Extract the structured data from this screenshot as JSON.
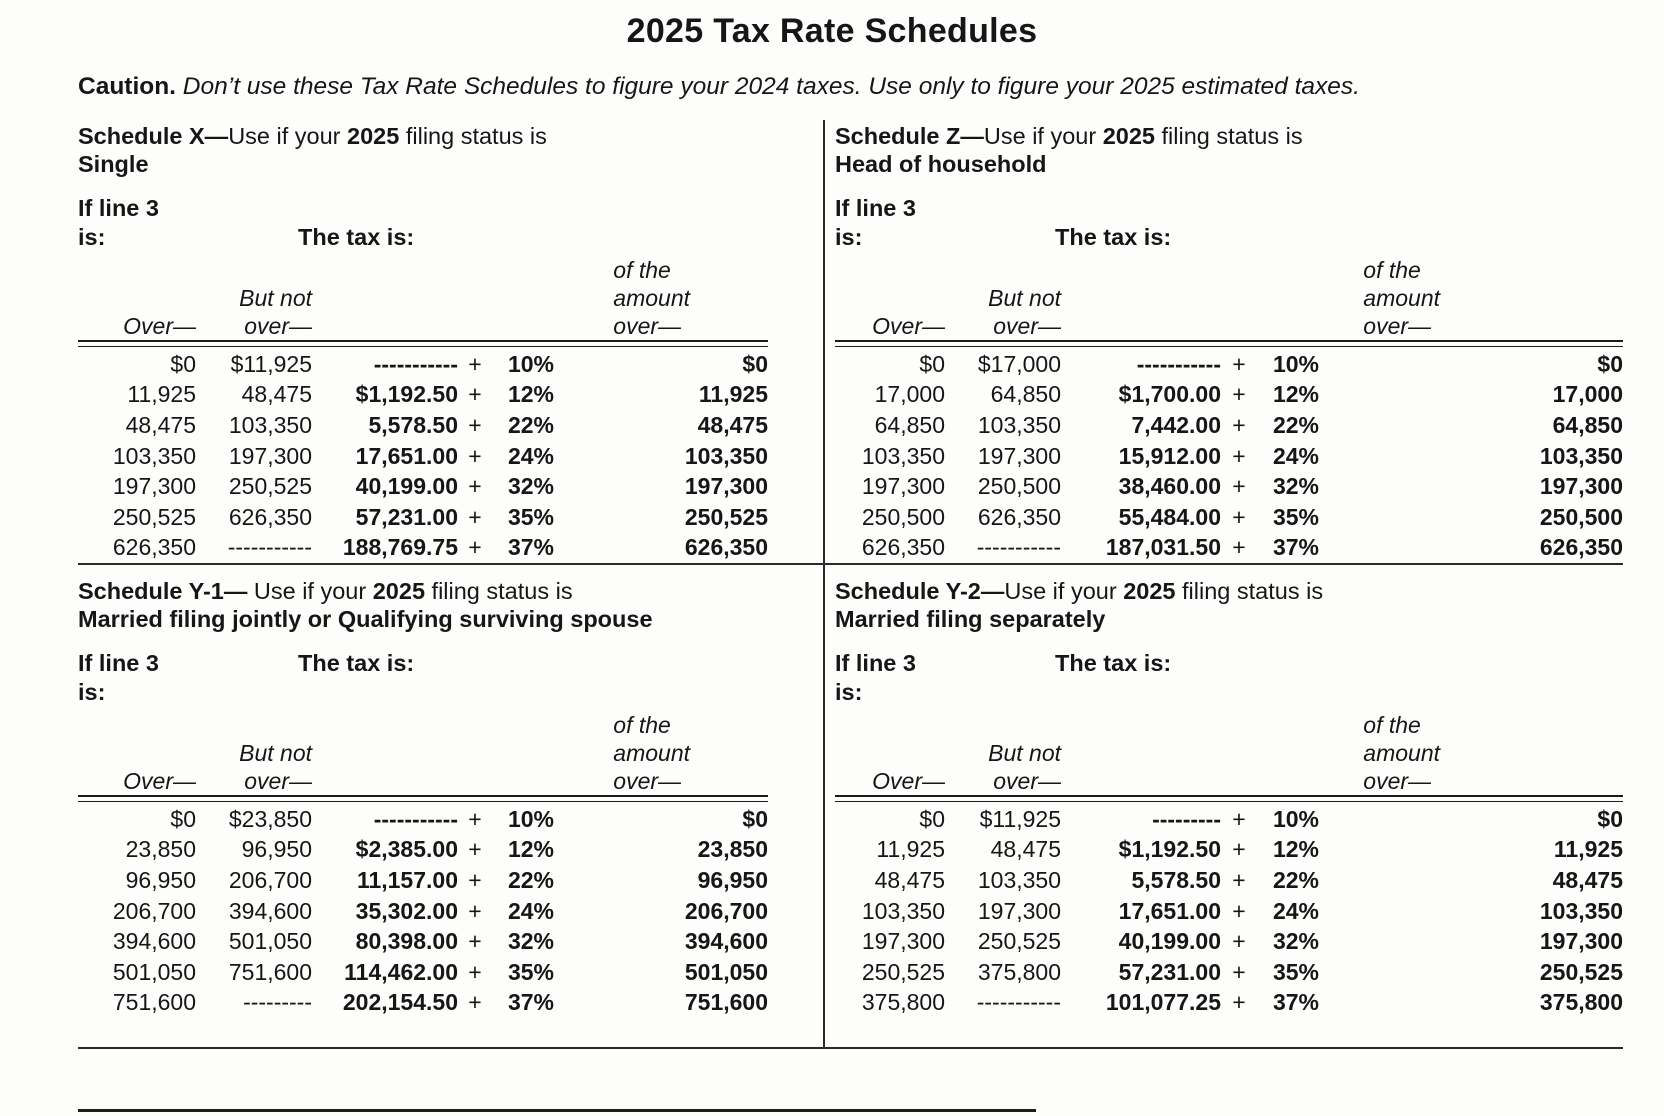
{
  "page": {
    "title": "2025 Tax Rate Schedules",
    "caution_label": "Caution.",
    "caution_text": " Don’t use these Tax Rate Schedules to figure your 2024 taxes. Use only to figure your 2025 estimated taxes."
  },
  "labels": {
    "if_line3_l1": "If line 3",
    "if_line3_l2": "is:",
    "tax_is": "The tax is:",
    "over": "Over—",
    "but_not_l1": "But not",
    "but_not_l2": "over—",
    "amount_l1": "of the",
    "amount_l2": "amount",
    "amount_l3": "over—",
    "plus": "+"
  },
  "schedules": [
    {
      "id": "X",
      "title_prefix": "Schedule X—",
      "title_mid": "Use if your ",
      "title_year": "2025",
      "title_suffix": " filing status is",
      "status": "Single",
      "rows": [
        {
          "over": "$0",
          "but_not_over": "$11,925",
          "base": "-----------",
          "pct": "10%",
          "of_over": "$0"
        },
        {
          "over": "11,925",
          "but_not_over": "48,475",
          "base": "$1,192.50",
          "pct": "12%",
          "of_over": "11,925"
        },
        {
          "over": "48,475",
          "but_not_over": "103,350",
          "base": "5,578.50",
          "pct": "22%",
          "of_over": "48,475"
        },
        {
          "over": "103,350",
          "but_not_over": "197,300",
          "base": "17,651.00",
          "pct": "24%",
          "of_over": "103,350"
        },
        {
          "over": "197,300",
          "but_not_over": "250,525",
          "base": "40,199.00",
          "pct": "32%",
          "of_over": "197,300"
        },
        {
          "over": "250,525",
          "but_not_over": "626,350",
          "base": "57,231.00",
          "pct": "35%",
          "of_over": "250,525"
        },
        {
          "over": "626,350",
          "but_not_over": "-----------",
          "base": "188,769.75",
          "pct": "37%",
          "of_over": "626,350"
        }
      ]
    },
    {
      "id": "Z",
      "title_prefix": "Schedule Z—",
      "title_mid": "Use if your ",
      "title_year": "2025",
      "title_suffix": " filing status is",
      "status": "Head of household",
      "rows": [
        {
          "over": "$0",
          "but_not_over": "$17,000",
          "base": "-----------",
          "pct": "10%",
          "of_over": "$0"
        },
        {
          "over": "17,000",
          "but_not_over": "64,850",
          "base": "$1,700.00",
          "pct": "12%",
          "of_over": "17,000"
        },
        {
          "over": "64,850",
          "but_not_over": "103,350",
          "base": "7,442.00",
          "pct": "22%",
          "of_over": "64,850"
        },
        {
          "over": "103,350",
          "but_not_over": "197,300",
          "base": "15,912.00",
          "pct": "24%",
          "of_over": "103,350"
        },
        {
          "over": "197,300",
          "but_not_over": "250,500",
          "base": "38,460.00",
          "pct": "32%",
          "of_over": "197,300"
        },
        {
          "over": "250,500",
          "but_not_over": "626,350",
          "base": "55,484.00",
          "pct": "35%",
          "of_over": "250,500"
        },
        {
          "over": "626,350",
          "but_not_over": "-----------",
          "base": "187,031.50",
          "pct": "37%",
          "of_over": "626,350"
        }
      ]
    },
    {
      "id": "Y-1",
      "title_prefix": "Schedule Y-1—",
      "title_mid": " Use if your ",
      "title_year": "2025",
      "title_suffix": " filing status is",
      "status": "Married filing jointly or Qualifying surviving spouse",
      "rows": [
        {
          "over": "$0",
          "but_not_over": "$23,850",
          "base": "-----------",
          "pct": "10%",
          "of_over": "$0"
        },
        {
          "over": "23,850",
          "but_not_over": "96,950",
          "base": "$2,385.00",
          "pct": "12%",
          "of_over": "23,850"
        },
        {
          "over": "96,950",
          "but_not_over": "206,700",
          "base": "11,157.00",
          "pct": "22%",
          "of_over": "96,950"
        },
        {
          "over": "206,700",
          "but_not_over": "394,600",
          "base": "35,302.00",
          "pct": "24%",
          "of_over": "206,700"
        },
        {
          "over": "394,600",
          "but_not_over": "501,050",
          "base": "80,398.00",
          "pct": "32%",
          "of_over": "394,600"
        },
        {
          "over": "501,050",
          "but_not_over": "751,600",
          "base": "114,462.00",
          "pct": "35%",
          "of_over": "501,050"
        },
        {
          "over": "751,600",
          "but_not_over": "---------",
          "base": "202,154.50",
          "pct": "37%",
          "of_over": "751,600"
        }
      ]
    },
    {
      "id": "Y-2",
      "title_prefix": "Schedule Y-2—",
      "title_mid": "Use if your ",
      "title_year": "2025",
      "title_suffix": " filing status is",
      "status": "Married filing separately",
      "rows": [
        {
          "over": "$0",
          "but_not_over": "$11,925",
          "base": "---------",
          "pct": "10%",
          "of_over": "$0"
        },
        {
          "over": "11,925",
          "but_not_over": "48,475",
          "base": "$1,192.50",
          "pct": "12%",
          "of_over": "11,925"
        },
        {
          "over": "48,475",
          "but_not_over": "103,350",
          "base": "5,578.50",
          "pct": "22%",
          "of_over": "48,475"
        },
        {
          "over": "103,350",
          "but_not_over": "197,300",
          "base": "17,651.00",
          "pct": "24%",
          "of_over": "103,350"
        },
        {
          "over": "197,300",
          "but_not_over": "250,525",
          "base": "40,199.00",
          "pct": "32%",
          "of_over": "197,300"
        },
        {
          "over": "250,525",
          "but_not_over": "375,800",
          "base": "57,231.00",
          "pct": "35%",
          "of_over": "250,525"
        },
        {
          "over": "375,800",
          "but_not_over": "-----------",
          "base": "101,077.25",
          "pct": "37%",
          "of_over": "375,800"
        }
      ]
    }
  ]
}
